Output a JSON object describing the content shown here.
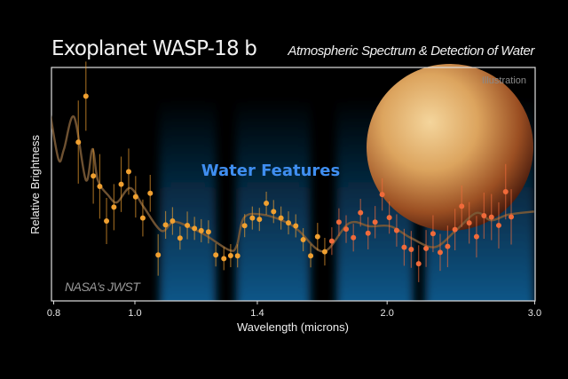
{
  "header": {
    "title": "Exoplanet WASP-18 b",
    "subtitle": "Atmospheric Spectrum & Detection of Water"
  },
  "labels": {
    "water_features": "Water Features",
    "credit": "NASA's JWST",
    "illustration": "Illustration"
  },
  "colors": {
    "background": "#000000",
    "water_band": "#0d4f7e",
    "water_label": "#3f8ef0",
    "model_line": "#7a5a36",
    "point_short": "#f0a030",
    "point_long": "#f06a3a"
  },
  "chart_data": {
    "type": "scatter",
    "title": "Exoplanet WASP-18 b",
    "subtitle": "Atmospheric Spectrum & Detection of Water",
    "xlabel": "Wavelength (microns)",
    "ylabel": "Relative Brightness",
    "x_scale": "log",
    "xlim": [
      0.8,
      3.0
    ],
    "xticks": [
      "0.8",
      "1.0",
      "1.4",
      "2.0",
      "3.0"
    ],
    "xtick_values": [
      0.8,
      1.0,
      1.4,
      2.0,
      3.0
    ],
    "ylim": [
      0,
      100
    ],
    "grid": false,
    "water_bands": [
      [
        1.07,
        1.25
      ],
      [
        1.32,
        1.62
      ],
      [
        1.74,
        2.15
      ],
      [
        2.22,
        3.0
      ]
    ],
    "observed": {
      "x": [
        0.856,
        0.874,
        0.892,
        0.908,
        0.925,
        0.944,
        0.963,
        0.983,
        1.002,
        1.022,
        1.043,
        1.066,
        1.088,
        1.109,
        1.132,
        1.155,
        1.178,
        1.2,
        1.224,
        1.249,
        1.277,
        1.301,
        1.326,
        1.352,
        1.381,
        1.408,
        1.435,
        1.464,
        1.494,
        1.525,
        1.556,
        1.588,
        1.621,
        1.652,
        1.685,
        1.718,
        1.752,
        1.787,
        1.823,
        1.859,
        1.898,
        1.935,
        1.973,
        2.012,
        2.053,
        2.096,
        2.137,
        2.181,
        2.226,
        2.269,
        2.314,
        2.362,
        2.41,
        2.455,
        2.506,
        2.557,
        2.61,
        2.664,
        2.718,
        2.77,
        2.813
      ],
      "y": [
        69.2,
        89.1,
        54.5,
        50.0,
        35.0,
        41.0,
        50.9,
        56.4,
        45.5,
        36.3,
        47.0,
        20.3,
        33.3,
        35.0,
        27.6,
        33.1,
        31.8,
        30.8,
        30.3,
        20.3,
        18.7,
        20.0,
        19.9,
        33.0,
        36.3,
        35.7,
        42.7,
        39.1,
        36.3,
        34.2,
        32.9,
        26.9,
        19.9,
        28.2,
        21.7,
        26.3,
        34.5,
        31.5,
        27.8,
        38.6,
        29.7,
        34.5,
        46.5,
        36.5,
        30.9,
        23.6,
        22.7,
        16.5,
        23.1,
        29.5,
        21.4,
        24.0,
        31.3,
        41.4,
        34.2,
        28.2,
        37.3,
        36.7,
        33.1,
        47.7,
        36.8
      ],
      "error": [
        18,
        15,
        12,
        14,
        10,
        10,
        12,
        10,
        9,
        8,
        8,
        9,
        6,
        6,
        5,
        6,
        5,
        5,
        5,
        5,
        5,
        5,
        5,
        5,
        5,
        5,
        5,
        5,
        5,
        5,
        5,
        5,
        5,
        6,
        6,
        6,
        6,
        6,
        6,
        6,
        7,
        7,
        7,
        7,
        7,
        8,
        8,
        8,
        8,
        8,
        8,
        9,
        9,
        9,
        9,
        9,
        10,
        10,
        10,
        12,
        12
      ]
    },
    "model": {
      "x": [
        0.793,
        0.811,
        0.823,
        0.846,
        0.874,
        0.89,
        0.903,
        0.929,
        0.952,
        0.987,
        1.024,
        1.075,
        1.111,
        1.157,
        1.215,
        1.296,
        1.323,
        1.35,
        1.417,
        1.513,
        1.569,
        1.681,
        1.801,
        1.907,
        2.019,
        2.137,
        2.28,
        2.414,
        2.556,
        2.661,
        2.794,
        2.995
      ],
      "y": [
        80.8,
        61.5,
        66.2,
        80.1,
        52.7,
        66.2,
        52.7,
        46.2,
        43.1,
        49.3,
        41.2,
        30.8,
        34.6,
        32.7,
        28.8,
        22.4,
        24.3,
        36.5,
        37.8,
        34.6,
        30.8,
        21.8,
        34.0,
        32.7,
        32.7,
        27.6,
        23.7,
        30.8,
        38.5,
        35.3,
        37.8,
        39.1
      ]
    }
  }
}
